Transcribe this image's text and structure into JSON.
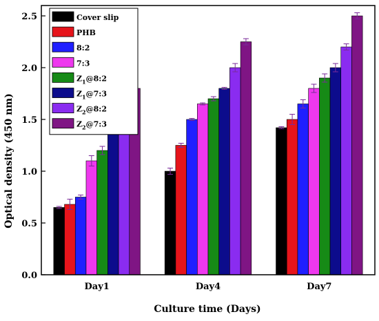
{
  "chart_data": {
    "type": "bar",
    "title": "",
    "xlabel": "Culture time (Days)",
    "ylabel": "Optical density (450 nm)",
    "ylim": [
      0,
      2.6
    ],
    "yticks": [
      "0.0",
      "0.5",
      "1.0",
      "1.5",
      "2.0",
      "2.5"
    ],
    "yticks_values": [
      0,
      0.5,
      1.0,
      1.5,
      2.0,
      2.5
    ],
    "categories": [
      "Day1",
      "Day4",
      "Day7"
    ],
    "legend_position": "top-left",
    "error_bars": true,
    "series": [
      {
        "name": "Cover slip",
        "label_base": "Cover slip",
        "label_sub": "",
        "label_rest": "",
        "color": "#000000",
        "values": [
          0.65,
          1.0,
          1.42
        ],
        "errors": [
          0.01,
          0.03,
          0.01
        ]
      },
      {
        "name": "PHB",
        "label_base": "PHB",
        "label_sub": "",
        "label_rest": "",
        "color": "#e6141b",
        "values": [
          0.68,
          1.25,
          1.5
        ],
        "errors": [
          0.05,
          0.02,
          0.05
        ]
      },
      {
        "name": "8:2",
        "label_base": "8:2",
        "label_sub": "",
        "label_rest": "",
        "color": "#1f1fff",
        "values": [
          0.75,
          1.5,
          1.65
        ],
        "errors": [
          0.02,
          0.01,
          0.04
        ]
      },
      {
        "name": "7:3",
        "label_base": "7:3",
        "label_sub": "",
        "label_rest": "",
        "color": "#ee38ee",
        "values": [
          1.1,
          1.65,
          1.8
        ],
        "errors": [
          0.05,
          0.01,
          0.04
        ]
      },
      {
        "name": "Z1@8:2",
        "label_base": "Z",
        "label_sub": "1",
        "label_rest": "@8:2",
        "color": "#168a16",
        "values": [
          1.2,
          1.7,
          1.9
        ],
        "errors": [
          0.04,
          0.02,
          0.04
        ]
      },
      {
        "name": "Z1@7:3",
        "label_base": "Z",
        "label_sub": "1",
        "label_rest": "@7:3",
        "color": "#0c0c8c",
        "values": [
          1.4,
          1.8,
          2.0
        ],
        "errors": [
          0.01,
          0.01,
          0.04
        ]
      },
      {
        "name": "Z2@8:2",
        "label_base": "Z",
        "label_sub": "2",
        "label_rest": "@8:2",
        "color": "#8a2cf0",
        "values": [
          1.6,
          2.0,
          2.2
        ],
        "errors": [
          0.03,
          0.04,
          0.03
        ]
      },
      {
        "name": "Z2@7:3",
        "label_base": "Z",
        "label_sub": "2",
        "label_rest": "@7:3",
        "color": "#7f1584",
        "values": [
          1.8,
          2.25,
          2.5
        ],
        "errors": [
          0.02,
          0.03,
          0.03
        ]
      }
    ]
  }
}
